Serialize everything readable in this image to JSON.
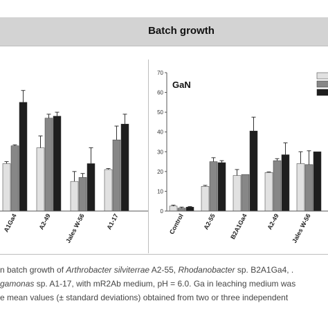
{
  "header": {
    "title": "Batch growth"
  },
  "caption": {
    "line1": {
      "a": "n batch growth of ",
      "b": "Arthrobacter silviterrae",
      "c": " A2-55, ",
      "d": "Rhodanobacter",
      "e": " sp. B2A1Ga4, ."
    },
    "line2": {
      "a": "gamonas",
      "b": " sp. A1-17, with mR2Ab medium, pH = 6.0. Ga in leaching medium was"
    },
    "line3": {
      "a": "e mean values (± standard deviations) obtained from two or three independent"
    }
  },
  "colors": {
    "light": "#e1e1e1",
    "mid": "#878787",
    "dark": "#1e1e1e",
    "axis": "#555555"
  },
  "chart_data": [
    {
      "type": "bar",
      "title": "",
      "categories": [
        "A1Ga4",
        "A2-49",
        "Jales W-56",
        "A1-17"
      ],
      "series": [
        {
          "values": [
            24,
            32,
            15,
            21
          ],
          "errors": [
            1,
            6,
            5,
            0.5
          ]
        },
        {
          "values": [
            33,
            47,
            17,
            36
          ],
          "errors": [
            0.5,
            2,
            2,
            7
          ]
        },
        {
          "values": [
            55,
            48,
            24,
            44
          ],
          "errors": [
            6,
            2,
            8,
            5
          ]
        }
      ],
      "ylim": [
        0,
        70
      ]
    },
    {
      "type": "bar",
      "title": "GaN",
      "categories": [
        "Control",
        "A2-55",
        "B2A1Ga4",
        "A2-49",
        "Jales W-56"
      ],
      "series": [
        {
          "values": [
            2.5,
            12.5,
            18,
            19.5,
            24
          ],
          "errors": [
            0.5,
            0.5,
            3,
            0.3,
            6
          ]
        },
        {
          "values": [
            1.5,
            25,
            18.5,
            25.5,
            23.5
          ],
          "errors": [
            0.5,
            2,
            0,
            1,
            7
          ]
        },
        {
          "values": [
            2,
            24.5,
            40.5,
            28.5,
            30
          ],
          "errors": [
            0.3,
            1,
            7,
            6,
            0
          ]
        }
      ],
      "ylim": [
        0,
        70
      ],
      "yticks": [
        0,
        10,
        20,
        30,
        40,
        50,
        60,
        70
      ]
    }
  ]
}
